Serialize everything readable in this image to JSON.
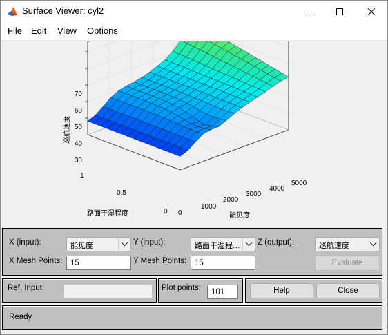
{
  "window": {
    "title": "Surface Viewer: cyl2"
  },
  "menu": [
    "File",
    "Edit",
    "View",
    "Options"
  ],
  "plot": {
    "z_ticks": [
      "30",
      "40",
      "50",
      "60",
      "70"
    ],
    "z_label": "巡航速度",
    "y_ticks": [
      "0",
      "0.5",
      "1"
    ],
    "y_label": "路面干湿程度",
    "x_ticks": [
      "0",
      "1000",
      "2000",
      "3000",
      "4000",
      "5000"
    ],
    "x_label": "能见度"
  },
  "controls": {
    "x_input_label": "X (input):",
    "x_input_value": "能见度",
    "y_input_label": "Y (input):",
    "y_input_value": "路面干湿程...",
    "z_output_label": "Z (output):",
    "z_output_value": "巡航速度",
    "x_mesh_label": "X Mesh Points:",
    "x_mesh_value": "15",
    "y_mesh_label": "Y Mesh Points:",
    "y_mesh_value": "15",
    "evaluate_label": "Evaluate",
    "ref_input_label": "Ref. Input:",
    "ref_input_value": "",
    "plot_points_label": "Plot points:",
    "plot_points_value": "101",
    "help_label": "Help",
    "close_label": "Close"
  },
  "status": "Ready"
}
